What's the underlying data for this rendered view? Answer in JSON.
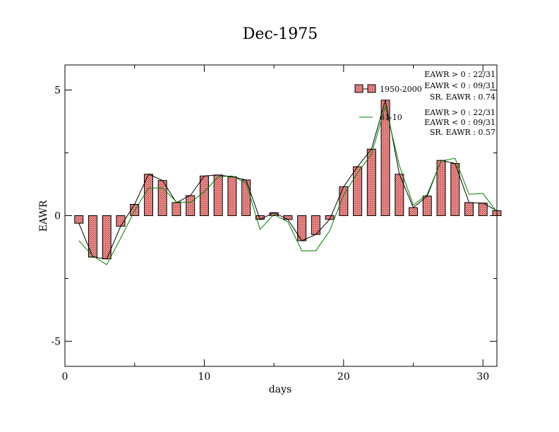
{
  "chart_data": {
    "type": "bar",
    "title": "Dec-1975",
    "xlabel": "days",
    "ylabel": "EAWR",
    "xlim": [
      0,
      31
    ],
    "ylim": [
      -6,
      6
    ],
    "xticks": [
      0,
      10,
      20,
      30
    ],
    "yticks": [
      -5,
      0,
      5
    ],
    "grid": false,
    "legend_position": "top-right",
    "series": [
      {
        "name": "1950-2000",
        "type": "bar",
        "x": [
          1,
          2,
          3,
          4,
          5,
          6,
          7,
          8,
          9,
          10,
          11,
          12,
          13,
          14,
          15,
          16,
          17,
          18,
          19,
          20,
          21,
          22,
          23,
          24,
          25,
          26,
          27,
          28,
          29,
          30,
          31
        ],
        "values": [
          -0.3,
          -1.65,
          -1.72,
          -0.42,
          0.45,
          1.65,
          1.4,
          0.52,
          0.8,
          1.58,
          1.62,
          1.55,
          1.42,
          -0.15,
          0.12,
          -0.15,
          -1.0,
          -0.75,
          -0.15,
          1.15,
          1.95,
          2.65,
          4.6,
          1.65,
          0.32,
          0.78,
          2.2,
          2.08,
          0.52,
          0.5,
          0.2
        ]
      },
      {
        "name": "61-10",
        "type": "line",
        "x": [
          1,
          2,
          3,
          4,
          5,
          6,
          7,
          8,
          9,
          10,
          11,
          12,
          13,
          14,
          15,
          16,
          17,
          18,
          19,
          20,
          21,
          22,
          23,
          24,
          25,
          26,
          27,
          28,
          29,
          30,
          31
        ],
        "values": [
          -1.0,
          -1.6,
          -1.95,
          -0.9,
          0.2,
          1.1,
          1.1,
          0.55,
          0.52,
          0.95,
          1.55,
          1.58,
          1.3,
          -0.55,
          0.05,
          -0.25,
          -1.4,
          -1.4,
          -0.6,
          0.82,
          1.7,
          2.45,
          4.35,
          2.0,
          0.42,
          0.85,
          2.18,
          2.28,
          0.85,
          0.88,
          0.15
        ]
      }
    ],
    "annotations": [
      {
        "group": "1950-2000",
        "lines": [
          "EAWR > 0 : 22/31",
          "EAWR < 0 : 09/31",
          "SR. EAWR :  0.74"
        ]
      },
      {
        "group": "61-10",
        "lines": [
          "EAWR > 0 : 22/31",
          "EAWR < 0 : 09/31",
          "SR. EAWR :  0.57"
        ]
      }
    ]
  },
  "colors": {
    "bar_fill": "#e88a8a",
    "bar_stroke": "#000000",
    "bar_line": "#000000",
    "series2_line": "#008000",
    "axis": "#000000"
  }
}
